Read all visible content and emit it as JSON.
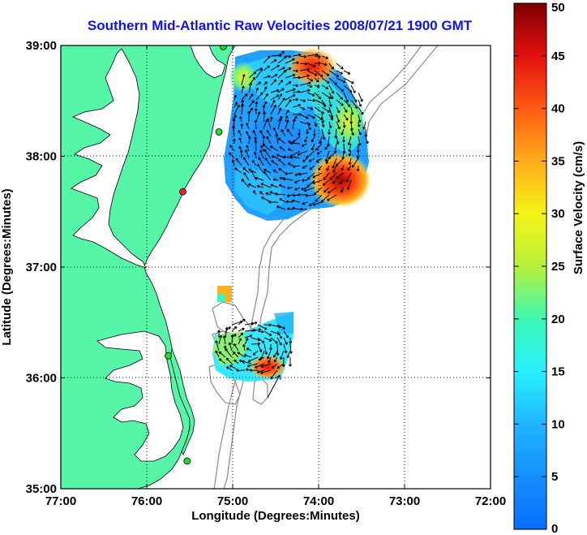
{
  "title": "Southern Mid-Atlantic Raw Velocities 2008/07/21 1900 GMT",
  "x_axis": {
    "label": "Longitude (Degrees:Minutes)",
    "ticks": [
      {
        "value": -77,
        "label": "77:00"
      },
      {
        "value": -76,
        "label": "76:00"
      },
      {
        "value": -75,
        "label": "75:00"
      },
      {
        "value": -74,
        "label": "74:00"
      },
      {
        "value": -73,
        "label": "73:00"
      },
      {
        "value": -72,
        "label": "72:00"
      }
    ],
    "range": [
      -77,
      -72
    ]
  },
  "y_axis": {
    "label": "Latitude (Degrees:Minutes)",
    "ticks": [
      {
        "value": 35,
        "label": "35:00"
      },
      {
        "value": 36,
        "label": "36:00"
      },
      {
        "value": 37,
        "label": "37:00"
      },
      {
        "value": 38,
        "label": "38:00"
      },
      {
        "value": 39,
        "label": "39:00"
      }
    ],
    "range": [
      35,
      39
    ]
  },
  "colorbar": {
    "label": "Surface Velocity (cm/s)",
    "min": 0,
    "max": 50,
    "ticks": [
      0,
      5,
      10,
      15,
      20,
      25,
      30,
      35,
      40,
      45,
      50
    ]
  },
  "colors": {
    "land": "#57f5a8",
    "title": "#1010ff",
    "station_active": "#22dd22",
    "station_inactive": "#ee2222"
  },
  "chart_data": {
    "type": "heatmap",
    "grid_on": true,
    "stations": [
      {
        "lon": -75.11,
        "lat": 38.99,
        "status": "active"
      },
      {
        "lon": -75.16,
        "lat": 38.22,
        "status": "active"
      },
      {
        "lon": -75.58,
        "lat": 37.68,
        "status": "inactive"
      },
      {
        "lon": -75.75,
        "lat": 36.2,
        "status": "active"
      },
      {
        "lon": -75.53,
        "lat": 35.25,
        "status": "active"
      }
    ],
    "hotspots": [
      {
        "lon": -73.8,
        "lat": 37.75,
        "speed": 48
      },
      {
        "lon": -74.1,
        "lat": 38.9,
        "speed": 45
      },
      {
        "lon": -74.3,
        "lat": 36.3,
        "speed": 45
      },
      {
        "lon": -75.15,
        "lat": 36.75,
        "speed": 35
      }
    ]
  }
}
